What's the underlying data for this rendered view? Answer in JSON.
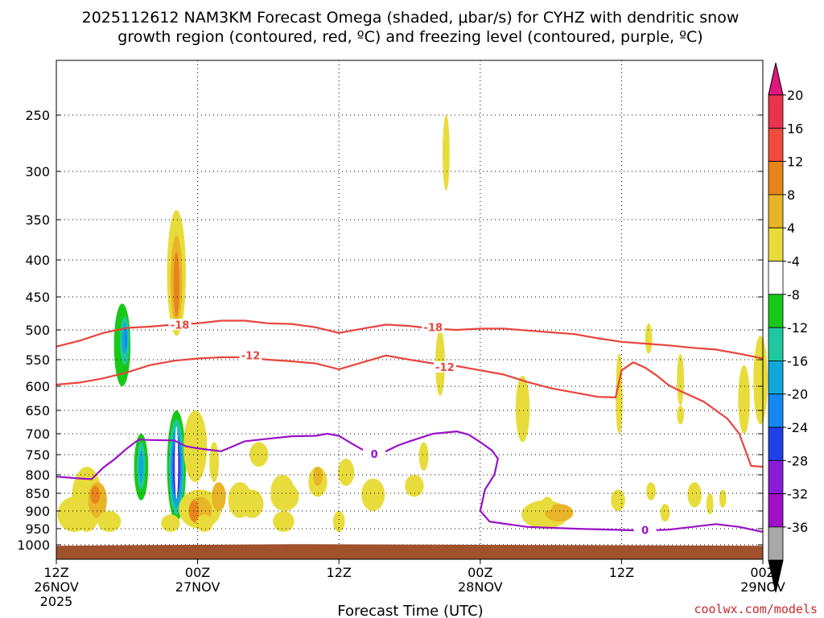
{
  "chart_data": {
    "type": "contour-time-height",
    "title_line1": "2025112612 NAM3KM Forecast Omega (shaded, μbar/s) for CYHZ with dendritic snow",
    "title_line2": "growth region (contoured, red, ºC) and freezing level (contoured, purple, ºC)",
    "xlabel": "Forecast Time (UTC)",
    "credit": "coolwx.com/models",
    "x_range_hours": [
      0,
      60
    ],
    "y_range_hpa": [
      210,
      1020
    ],
    "x_ticks": [
      {
        "hour": 0,
        "l1": "12Z",
        "l2": "26NOV",
        "l3": "2025"
      },
      {
        "hour": 12,
        "l1": "00Z",
        "l2": "27NOV",
        "l3": ""
      },
      {
        "hour": 24,
        "l1": "12Z",
        "l2": "",
        "l3": ""
      },
      {
        "hour": 36,
        "l1": "00Z",
        "l2": "28NOV",
        "l3": ""
      },
      {
        "hour": 48,
        "l1": "12Z",
        "l2": "",
        "l3": ""
      },
      {
        "hour": 60,
        "l1": "00Z",
        "l2": "29NOV",
        "l3": ""
      }
    ],
    "y_ticks": [
      250,
      300,
      350,
      400,
      450,
      500,
      550,
      600,
      650,
      700,
      750,
      800,
      850,
      900,
      950,
      1000
    ],
    "colorbar": {
      "labels": [
        "20",
        "16",
        "12",
        "8",
        "4",
        "-4",
        "-8",
        "-12",
        "-16",
        "-20",
        "-24",
        "-28",
        "-32",
        "-36"
      ],
      "colors": [
        "#e8344c",
        "#f04c3c",
        "#e8841c",
        "#e8b428",
        "#e8dc3c",
        "#ffffff",
        "#18c818",
        "#20c8a0",
        "#10a8d8",
        "#1488f0",
        "#2040e8",
        "#8a1cd8",
        "#a010c8",
        "#a8a8a8"
      ],
      "top_color": "#e0187c",
      "bottom_color": "#000000"
    },
    "contours": [
      {
        "name": "dgz-minus-18",
        "label": "-18",
        "color": "#e8443c",
        "points": [
          [
            0,
            528
          ],
          [
            2,
            518
          ],
          [
            4,
            505
          ],
          [
            6,
            497
          ],
          [
            8,
            495
          ],
          [
            10,
            492
          ],
          [
            12,
            490
          ],
          [
            14,
            486
          ],
          [
            16,
            486
          ],
          [
            18,
            490
          ],
          [
            20,
            491
          ],
          [
            22,
            496
          ],
          [
            24,
            505
          ],
          [
            26,
            498
          ],
          [
            28,
            492
          ],
          [
            30,
            494
          ],
          [
            32,
            498
          ],
          [
            34,
            500
          ],
          [
            36,
            498
          ],
          [
            38,
            498
          ],
          [
            40,
            501
          ],
          [
            42,
            504
          ],
          [
            44,
            507
          ],
          [
            46,
            514
          ],
          [
            48,
            520
          ],
          [
            50,
            523
          ],
          [
            52,
            526
          ],
          [
            54,
            530
          ],
          [
            56,
            533
          ],
          [
            58,
            540
          ],
          [
            60,
            548
          ]
        ],
        "label_positions": [
          [
            10.5,
            493
          ],
          [
            32,
            497
          ]
        ]
      },
      {
        "name": "dgz-minus-12",
        "label": "-12",
        "color": "#e8443c",
        "points": [
          [
            0,
            597
          ],
          [
            2,
            593
          ],
          [
            4,
            585
          ],
          [
            6,
            574
          ],
          [
            8,
            560
          ],
          [
            10,
            552
          ],
          [
            12,
            548
          ],
          [
            14,
            546
          ],
          [
            16,
            546
          ],
          [
            18,
            550
          ],
          [
            20,
            553
          ],
          [
            22,
            557
          ],
          [
            24,
            568
          ],
          [
            26,
            555
          ],
          [
            28,
            543
          ],
          [
            30,
            550
          ],
          [
            32,
            557
          ],
          [
            34,
            562
          ],
          [
            36,
            570
          ],
          [
            38,
            578
          ],
          [
            40,
            592
          ],
          [
            42,
            604
          ],
          [
            44,
            613
          ],
          [
            46,
            622
          ],
          [
            47.5,
            623
          ],
          [
            48,
            570
          ],
          [
            49,
            555
          ],
          [
            50,
            565
          ],
          [
            51,
            580
          ],
          [
            52,
            598
          ],
          [
            53,
            610
          ],
          [
            55,
            632
          ],
          [
            57,
            668
          ],
          [
            58,
            700
          ],
          [
            59,
            778
          ],
          [
            60,
            780
          ]
        ],
        "label_positions": [
          [
            16.5,
            544
          ],
          [
            33,
            565
          ]
        ]
      },
      {
        "name": "freezing-level-0",
        "label": "0",
        "color": "#9a10c8",
        "points": [
          [
            0,
            805
          ],
          [
            2,
            810
          ],
          [
            3,
            812
          ],
          [
            4,
            782
          ],
          [
            5,
            760
          ],
          [
            6,
            735
          ],
          [
            7,
            714
          ],
          [
            8,
            715
          ],
          [
            10,
            716
          ],
          [
            11,
            730
          ],
          [
            12,
            735
          ],
          [
            14,
            742
          ],
          [
            15,
            730
          ],
          [
            16,
            718
          ],
          [
            18,
            712
          ],
          [
            20,
            706
          ],
          [
            22,
            705
          ],
          [
            23,
            700
          ],
          [
            24,
            705
          ],
          [
            25,
            722
          ],
          [
            26,
            738
          ],
          [
            27,
            750
          ],
          [
            28,
            742
          ],
          [
            29,
            728
          ],
          [
            30,
            718
          ],
          [
            32,
            700
          ],
          [
            34,
            695
          ],
          [
            35,
            702
          ],
          [
            36,
            720
          ],
          [
            37,
            740
          ],
          [
            37.5,
            760
          ],
          [
            37.2,
            800
          ],
          [
            36.4,
            840
          ],
          [
            36,
            900
          ],
          [
            36.8,
            930
          ],
          [
            40,
            945
          ],
          [
            44,
            950
          ],
          [
            48,
            954
          ],
          [
            50,
            956
          ],
          [
            52,
            953
          ],
          [
            54,
            945
          ],
          [
            56,
            937
          ],
          [
            58,
            945
          ],
          [
            60,
            960
          ]
        ],
        "label_positions": [
          [
            27,
            750
          ],
          [
            50,
            956
          ]
        ]
      }
    ]
  }
}
